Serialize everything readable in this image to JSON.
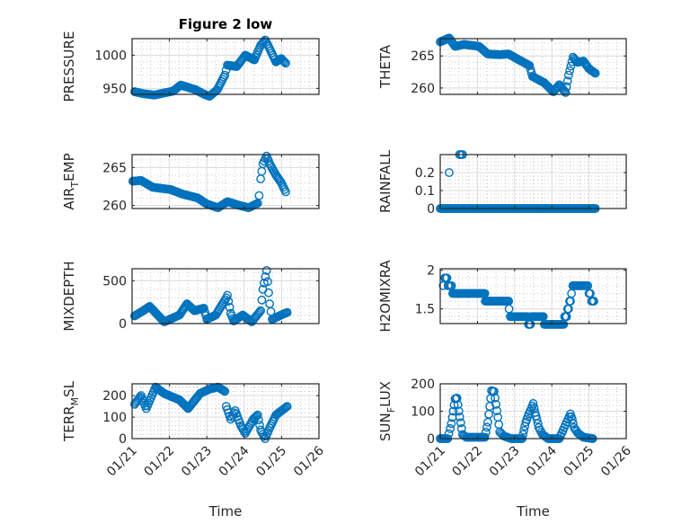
{
  "figure_title": "Figure 2 low",
  "colors": {
    "marker": "#0072BD",
    "axis": "#262626",
    "grid_major": "#dcdcdc",
    "grid_minor": "#c8c8c8"
  },
  "x_axis": {
    "label": "Time",
    "unit": "days since 01/21",
    "range": [
      0,
      5
    ],
    "ticks": [
      0,
      1,
      2,
      3,
      4,
      5
    ],
    "tick_labels": [
      "01/21",
      "01/22",
      "01/23",
      "01/24",
      "01/25",
      "01/26"
    ]
  },
  "chart_data": [
    {
      "id": "pressure",
      "type": "scatter",
      "ylabel": {
        "main": "PRESSURE",
        "sub": "",
        "rest": ""
      },
      "ylim": [
        941,
        1025
      ],
      "yticks": [
        950,
        1000
      ],
      "ytick_labels": [
        "950",
        "1000"
      ],
      "grid": true,
      "keys": {
        "x": [
          0.07,
          0.3,
          0.6,
          1.1,
          1.3,
          1.7,
          1.9,
          2.07,
          2.28,
          2.48,
          2.55,
          2.8,
          3.03,
          3.27,
          3.44,
          3.56,
          3.68,
          3.85,
          3.99,
          4.11
        ],
        "y": [
          945,
          942,
          940,
          946,
          955,
          948,
          942,
          938,
          948,
          970,
          985,
          983,
          1000,
          993,
          1015,
          1023,
          1010,
          990,
          995,
          988
        ]
      }
    },
    {
      "id": "theta",
      "type": "scatter",
      "ylabel": {
        "main": "THETA",
        "sub": "",
        "rest": ""
      },
      "ylim": [
        259,
        267.7
      ],
      "yticks": [
        260,
        265
      ],
      "ytick_labels": [
        "260",
        "265"
      ],
      "grid": true,
      "keys": {
        "x": [
          0.0,
          0.24,
          0.4,
          0.64,
          1.04,
          1.28,
          1.6,
          1.84,
          2.08,
          2.4,
          2.48,
          2.8,
          3.04,
          3.2,
          3.37,
          3.45,
          3.57,
          3.69,
          3.85,
          4.0,
          4.17
        ],
        "y": [
          267.2,
          267.8,
          266.5,
          266.8,
          266.5,
          265.3,
          265.2,
          265.3,
          264.5,
          263.5,
          261.8,
          260.8,
          259.4,
          260.5,
          259.3,
          262,
          264.8,
          264,
          264.2,
          263,
          262.3
        ]
      }
    },
    {
      "id": "air_temp",
      "type": "scatter",
      "ylabel": {
        "main": "AIR",
        "sub": "T",
        "rest": "EMP"
      },
      "ylim": [
        259.6,
        266.7
      ],
      "yticks": [
        260,
        265
      ],
      "ytick_labels": [
        "260",
        "265"
      ],
      "grid": true,
      "keys": {
        "x": [
          0.02,
          0.24,
          0.55,
          1.03,
          1.35,
          1.75,
          2.0,
          2.3,
          2.55,
          2.88,
          3.12,
          3.36,
          3.4,
          3.44,
          3.5,
          3.6,
          3.68,
          3.85,
          3.99,
          4.11
        ],
        "y": [
          263.2,
          263.3,
          262.4,
          262.1,
          261.5,
          261,
          260.2,
          259.7,
          260.5,
          260,
          259.7,
          260.3,
          261.3,
          263.5,
          265.5,
          266.5,
          265.5,
          264,
          263,
          261.8
        ]
      }
    },
    {
      "id": "rainfall",
      "type": "scatter",
      "ylabel": {
        "main": "RAINFALL",
        "sub": "",
        "rest": ""
      },
      "ylim": [
        0,
        0.3
      ],
      "yticks": [
        0,
        0.1,
        0.2
      ],
      "ytick_labels": [
        "0",
        "0.1",
        "0.2"
      ],
      "grid": true,
      "keys": {
        "x": [
          0.0,
          4.17
        ],
        "y": [
          0,
          0
        ]
      },
      "points": {
        "x": [
          0.24,
          0.52,
          0.56,
          0.6
        ],
        "y": [
          0.2,
          0.3,
          0.3,
          0.3
        ]
      }
    },
    {
      "id": "mixdepth",
      "type": "scatter",
      "ylabel": {
        "main": "MIXDEPTH",
        "sub": "",
        "rest": ""
      },
      "ylim": [
        0,
        640
      ],
      "yticks": [
        0,
        500
      ],
      "ytick_labels": [
        "0",
        "500"
      ],
      "grid": true,
      "keys": {
        "x": [
          0.07,
          0.3,
          0.47,
          0.86,
          1.27,
          1.47,
          1.67,
          1.92,
          2.0,
          2.24,
          2.52,
          2.55,
          2.64,
          2.72,
          2.96,
          3.2,
          3.44,
          3.5,
          3.6,
          3.68,
          3.75,
          3.99,
          4.15
        ],
        "y": [
          90,
          150,
          200,
          20,
          100,
          230,
          150,
          180,
          50,
          100,
          300,
          330,
          120,
          30,
          100,
          20,
          150,
          400,
          620,
          230,
          50,
          100,
          130
        ]
      }
    },
    {
      "id": "h2omixra",
      "type": "scatter",
      "ylabel": {
        "main": "H2OMIXRA",
        "sub": "",
        "rest": ""
      },
      "ylim": [
        1.31,
        2.02
      ],
      "yticks": [
        1.5,
        2
      ],
      "ytick_labels": [
        "1.5",
        "2"
      ],
      "grid": true,
      "round": 0.1,
      "keys": {
        "x": [
          0.08,
          0.12,
          0.24,
          0.4,
          1.2,
          1.21,
          1.84,
          1.85,
          1.92,
          2.32,
          2.4,
          2.48,
          2.77,
          2.8,
          3.29,
          3.37,
          3.45,
          3.53,
          3.6,
          3.93,
          4.0,
          4.13
        ],
        "y": [
          1.8,
          1.9,
          1.8,
          1.7,
          1.7,
          1.6,
          1.6,
          1.5,
          1.4,
          1.4,
          1.3,
          1.4,
          1.4,
          1.3,
          1.3,
          1.4,
          1.5,
          1.7,
          1.8,
          1.8,
          1.7,
          1.6
        ]
      }
    },
    {
      "id": "terr_msl",
      "type": "scatter",
      "ylabel": {
        "main": "TERR",
        "sub": "M",
        "rest": "SL"
      },
      "ylim": [
        0,
        255
      ],
      "yticks": [
        0,
        100,
        200
      ],
      "ytick_labels": [
        "0",
        "100",
        "200"
      ],
      "grid": true,
      "show_x": true,
      "keys": {
        "x": [
          0.07,
          0.24,
          0.38,
          0.63,
          0.86,
          1.27,
          1.5,
          1.82,
          2.07,
          2.3,
          2.48,
          2.52,
          2.64,
          2.76,
          2.91,
          3.03,
          3.24,
          3.36,
          3.44,
          3.56,
          3.68,
          3.85,
          4.15
        ],
        "y": [
          160,
          200,
          140,
          240,
          210,
          180,
          140,
          210,
          230,
          240,
          220,
          150,
          90,
          130,
          60,
          25,
          90,
          110,
          40,
          0,
          50,
          110,
          150
        ]
      }
    },
    {
      "id": "sun_flux",
      "type": "scatter",
      "ylabel": {
        "main": "SUN",
        "sub": "F",
        "rest": "LUX"
      },
      "ylim": [
        0,
        200
      ],
      "yticks": [
        0,
        100,
        200
      ],
      "ytick_labels": [
        "0",
        "100",
        "200"
      ],
      "grid": true,
      "show_x": true,
      "keys": {
        "x": [
          0,
          0.2,
          0.3,
          0.35,
          0.4,
          0.45,
          0.5,
          0.55,
          0.6,
          0.7,
          1.2,
          1.28,
          1.33,
          1.38,
          1.45,
          1.5,
          1.55,
          1.6,
          1.7,
          1.9,
          2.2,
          2.25,
          2.3,
          2.38,
          2.45,
          2.5,
          2.55,
          2.6,
          2.65,
          2.75,
          2.9,
          3.2,
          3.3,
          3.4,
          3.5,
          3.55,
          3.6,
          3.7,
          3.85,
          4.1
        ],
        "y": [
          0,
          0,
          55,
          100,
          145,
          148,
          100,
          58,
          15,
          5,
          5,
          60,
          118,
          175,
          172,
          125,
          78,
          25,
          10,
          0,
          0,
          30,
          60,
          90,
          110,
          128,
          95,
          70,
          40,
          15,
          0,
          0,
          30,
          60,
          90,
          70,
          40,
          20,
          5,
          0
        ]
      }
    }
  ]
}
